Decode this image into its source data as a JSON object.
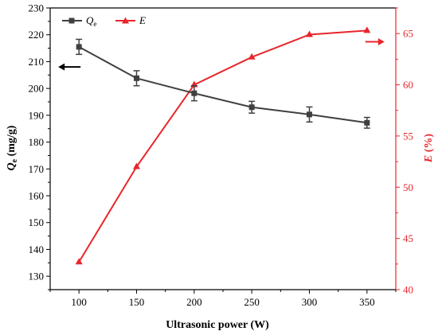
{
  "colors": {
    "qe_series": "#404040",
    "e_series": "#e8262b",
    "axis": "#000000"
  },
  "chart_data": {
    "type": "line",
    "xlabel": "Ultrasonic power (W)",
    "ylabel_left": {
      "main": "Q",
      "sub": "e",
      "unit": " (mg/g)"
    },
    "ylabel_right": {
      "main": "E",
      "unit": " (%)"
    },
    "x": [
      100,
      150,
      200,
      250,
      300,
      350
    ],
    "xlim": [
      75,
      375
    ],
    "xticks": [
      100,
      150,
      200,
      250,
      300,
      350
    ],
    "ylim_left": [
      125,
      230
    ],
    "yticks_left": [
      130,
      140,
      150,
      160,
      170,
      180,
      190,
      200,
      210,
      220,
      230
    ],
    "ylim_right": [
      40,
      67.5
    ],
    "yticks_right": [
      40,
      45,
      50,
      55,
      60,
      65
    ],
    "series": [
      {
        "name": "Q",
        "name_sub": "e",
        "axis": "left",
        "marker": "square",
        "values": [
          215.5,
          203.8,
          198.2,
          193.0,
          190.3,
          187.2
        ],
        "errors": [
          2.8,
          2.8,
          2.8,
          2.2,
          2.8,
          2.0
        ]
      },
      {
        "name": "E",
        "axis": "right",
        "marker": "triangle",
        "values": [
          42.7,
          52.0,
          60.0,
          62.7,
          64.9,
          65.3
        ]
      }
    ],
    "annotations": [
      {
        "type": "arrow",
        "direction": "left",
        "points_to": "left-axis",
        "x": 100,
        "y_left": 208
      },
      {
        "type": "arrow",
        "direction": "right",
        "points_to": "right-axis",
        "x": 350,
        "y_right": 64.2
      }
    ],
    "legend_placement": "top-left",
    "grid": false
  }
}
